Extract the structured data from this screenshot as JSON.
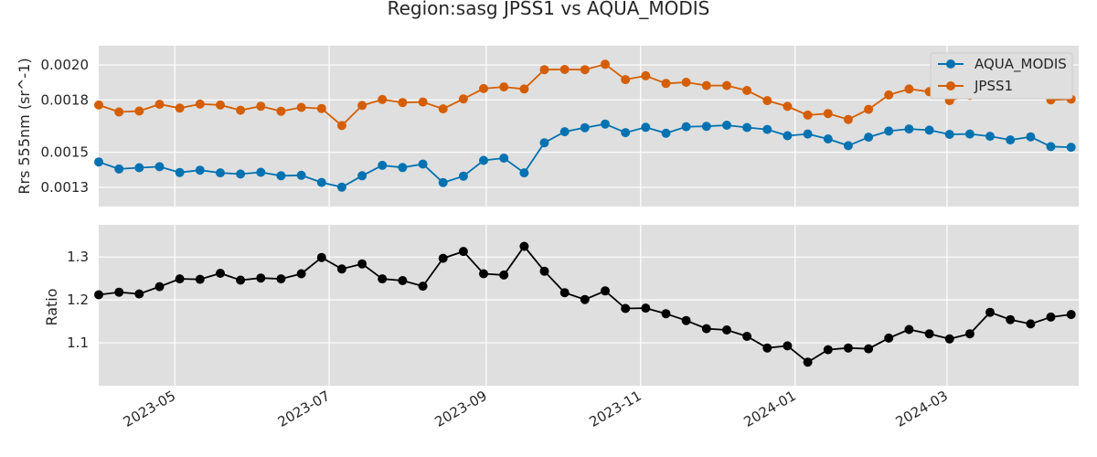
{
  "chart_data": [
    {
      "type": "line",
      "title": "Region:sasg JPSS1 vs AQUA_MODIS",
      "ylabel": "Rrs 555nm (sr^-1)",
      "ylim": [
        0.00119,
        0.00211
      ],
      "yticks": [
        0.0013,
        0.0015,
        0.0018,
        0.002
      ],
      "ytick_labels": [
        "0.0013",
        "0.0015",
        "0.0018",
        "0.0020"
      ],
      "grid": true,
      "legend": "top-right",
      "x": [
        "2023-04-01",
        "2023-04-09",
        "2023-04-17",
        "2023-04-25",
        "2023-05-03",
        "2023-05-11",
        "2023-05-19",
        "2023-05-27",
        "2023-06-04",
        "2023-06-12",
        "2023-06-20",
        "2023-06-28",
        "2023-07-06",
        "2023-07-14",
        "2023-07-22",
        "2023-07-30",
        "2023-08-07",
        "2023-08-15",
        "2023-08-23",
        "2023-08-31",
        "2023-09-08",
        "2023-09-16",
        "2023-09-24",
        "2023-10-02",
        "2023-10-10",
        "2023-10-18",
        "2023-10-26",
        "2023-11-03",
        "2023-11-11",
        "2023-11-19",
        "2023-11-27",
        "2023-12-05",
        "2023-12-13",
        "2023-12-21",
        "2023-12-29",
        "2024-01-06",
        "2024-01-14",
        "2024-01-22",
        "2024-01-30",
        "2024-02-07",
        "2024-02-15",
        "2024-02-23",
        "2024-03-02",
        "2024-03-10",
        "2024-03-18",
        "2024-03-26",
        "2024-04-03",
        "2024-04-11",
        "2024-04-19"
      ],
      "series": [
        {
          "name": "AQUA_MODIS",
          "color": "#0072b2",
          "values": [
            0.001445,
            0.001405,
            0.001412,
            0.001418,
            0.001385,
            0.001398,
            0.001383,
            0.001376,
            0.001386,
            0.001366,
            0.001369,
            0.001328,
            0.001301,
            0.001366,
            0.001426,
            0.001413,
            0.001433,
            0.001327,
            0.001364,
            0.001454,
            0.001467,
            0.001383,
            0.001555,
            0.001618,
            0.001641,
            0.001662,
            0.001613,
            0.001643,
            0.001609,
            0.001647,
            0.001649,
            0.001655,
            0.001642,
            0.001631,
            0.001595,
            0.001605,
            0.001577,
            0.001538,
            0.001587,
            0.001622,
            0.001634,
            0.001627,
            0.001603,
            0.001605,
            0.001592,
            0.001571,
            0.001589,
            0.001533,
            0.001529
          ]
        },
        {
          "name": "JPSS1",
          "color": "#d55e00",
          "values": [
            0.001771,
            0.001731,
            0.001736,
            0.001775,
            0.001753,
            0.001776,
            0.001771,
            0.001741,
            0.001764,
            0.001735,
            0.001757,
            0.001751,
            0.001653,
            0.001768,
            0.001802,
            0.001785,
            0.001788,
            0.001749,
            0.001806,
            0.001865,
            0.001874,
            0.001862,
            0.001973,
            0.001974,
            0.001973,
            0.002004,
            0.001916,
            0.001938,
            0.001894,
            0.001901,
            0.001882,
            0.001882,
            0.001854,
            0.001796,
            0.001763,
            0.001713,
            0.001722,
            0.001688,
            0.001746,
            0.001828,
            0.001862,
            0.001847,
            0.001796,
            0.001826,
            0.001886,
            0.001842,
            0.001845,
            0.0018,
            0.001804
          ]
        }
      ]
    },
    {
      "type": "line",
      "ylabel": "Ratio",
      "ylim": [
        1.0,
        1.375
      ],
      "yticks": [
        1.1,
        1.2,
        1.3
      ],
      "ytick_labels": [
        "1.1",
        "1.2",
        "1.3"
      ],
      "grid": true,
      "x_range": [
        "2023-04-01",
        "2024-04-22"
      ],
      "xticks": [
        "2023-05-01",
        "2023-07-01",
        "2023-09-01",
        "2023-11-01",
        "2024-01-01",
        "2024-03-01"
      ],
      "xtick_labels": [
        "2023-05",
        "2023-07",
        "2023-09",
        "2023-11",
        "2024-01",
        "2024-03"
      ],
      "series": [
        {
          "color": "#000000",
          "values": [
            1.212,
            1.218,
            1.214,
            1.231,
            1.249,
            1.248,
            1.262,
            1.246,
            1.251,
            1.249,
            1.261,
            1.299,
            1.272,
            1.284,
            1.249,
            1.245,
            1.232,
            1.297,
            1.313,
            1.261,
            1.258,
            1.325,
            1.267,
            1.217,
            1.201,
            1.221,
            1.18,
            1.181,
            1.168,
            1.152,
            1.133,
            1.13,
            1.115,
            1.088,
            1.093,
            1.055,
            1.084,
            1.088,
            1.086,
            1.111,
            1.131,
            1.121,
            1.109,
            1.121,
            1.171,
            1.154,
            1.144,
            1.16,
            1.166
          ]
        }
      ]
    }
  ]
}
